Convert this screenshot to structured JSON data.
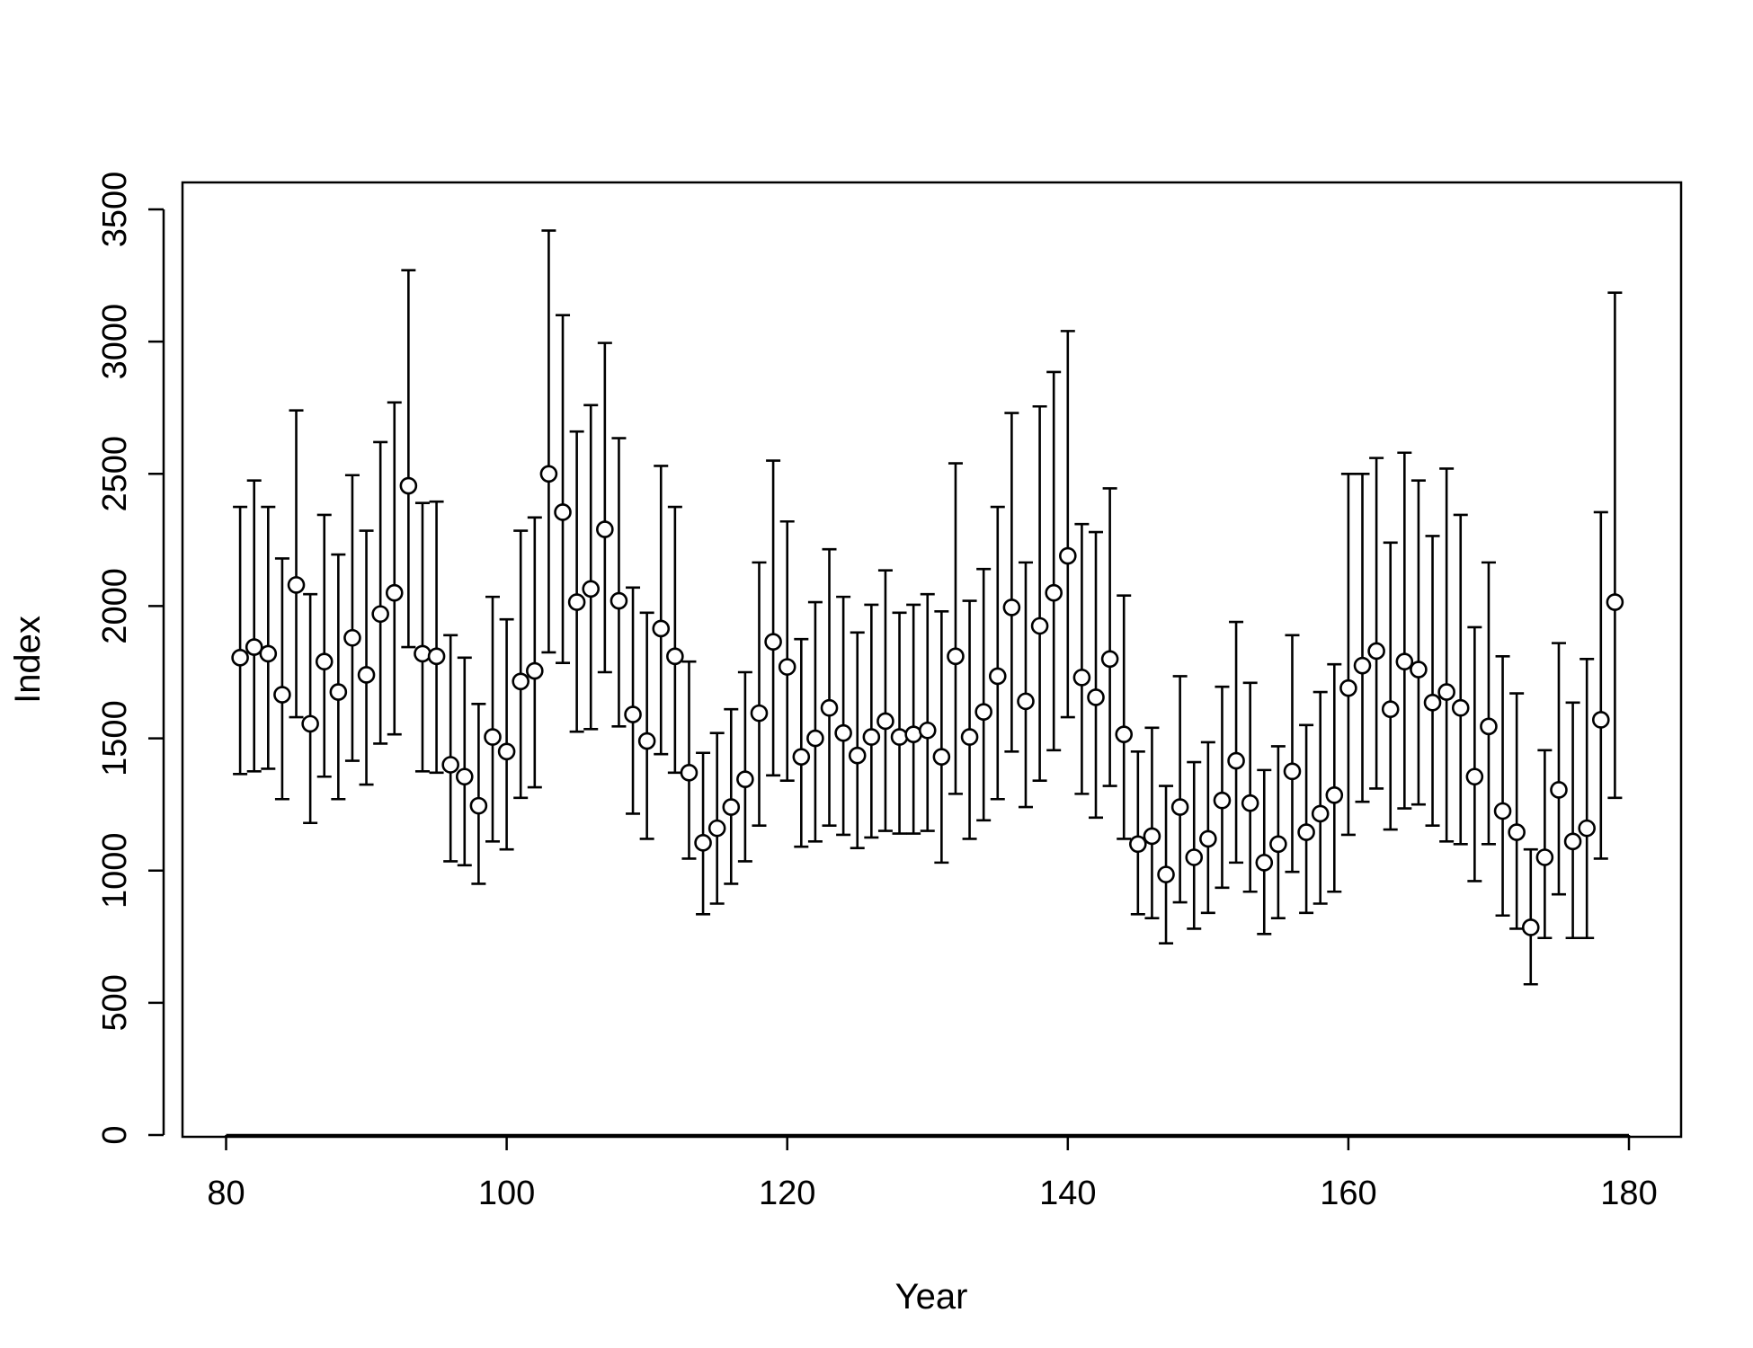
{
  "chart_data": {
    "type": "scatter",
    "title": "",
    "xlabel": "Year",
    "ylabel": "Index",
    "xlim": [
      81,
      179
    ],
    "ylim": [
      0,
      3500
    ],
    "xticks": [
      "80",
      "100",
      "120",
      "140",
      "160",
      "180"
    ],
    "yticks": [
      "0",
      "500",
      "1000",
      "1500",
      "2000",
      "2500",
      "3000",
      "3500"
    ],
    "grid": false,
    "legend": "none",
    "marker": "open-circle",
    "error_bars": true,
    "x": [
      81,
      82,
      83,
      84,
      85,
      86,
      87,
      88,
      89,
      90,
      91,
      92,
      93,
      94,
      95,
      96,
      97,
      98,
      99,
      100,
      101,
      102,
      103,
      104,
      105,
      106,
      107,
      108,
      109,
      110,
      111,
      112,
      113,
      114,
      115,
      116,
      117,
      118,
      119,
      120,
      121,
      122,
      123,
      124,
      125,
      126,
      127,
      128,
      129,
      130,
      131,
      132,
      133,
      134,
      135,
      136,
      137,
      138,
      139,
      140,
      141,
      142,
      143,
      144,
      145,
      146,
      147,
      148,
      149,
      150,
      151,
      152,
      153,
      154,
      155,
      156,
      157,
      158,
      159,
      160,
      161,
      162,
      163,
      164,
      165,
      166,
      167,
      168,
      169,
      170,
      171,
      172,
      173,
      174,
      175,
      176,
      177,
      178,
      179
    ],
    "y": [
      1805,
      1845,
      1820,
      1665,
      2080,
      1555,
      1790,
      1675,
      1880,
      1740,
      1970,
      2050,
      2455,
      1820,
      1810,
      1400,
      1355,
      1245,
      1505,
      1450,
      1715,
      1755,
      2500,
      2355,
      2015,
      2065,
      2290,
      2020,
      1590,
      1490,
      1915,
      1810,
      1370,
      1105,
      1160,
      1240,
      1345,
      1595,
      1865,
      1770,
      1430,
      1500,
      1615,
      1520,
      1435,
      1505,
      1565,
      1505,
      1515,
      1530,
      1430,
      1810,
      1505,
      1600,
      1735,
      1995,
      1640,
      1925,
      2050,
      2190,
      1730,
      1655,
      1800,
      1515,
      1100,
      1130,
      985,
      1240,
      1050,
      1120,
      1265,
      1415,
      1255,
      1030,
      1100,
      1375,
      1145,
      1215,
      1285,
      1690,
      1775,
      1830,
      1610,
      1790,
      1760,
      1635,
      1675,
      1615,
      1355,
      1545,
      1225,
      1145,
      785,
      1050,
      1305,
      1110,
      1160,
      1570,
      2015
    ],
    "lower": [
      1365,
      1375,
      1385,
      1270,
      1580,
      1180,
      1355,
      1270,
      1415,
      1325,
      1480,
      1515,
      1845,
      1375,
      1370,
      1035,
      1020,
      950,
      1110,
      1080,
      1275,
      1315,
      1825,
      1785,
      1525,
      1535,
      1750,
      1545,
      1215,
      1120,
      1440,
      1370,
      1045,
      835,
      875,
      950,
      1035,
      1170,
      1360,
      1340,
      1090,
      1110,
      1170,
      1135,
      1085,
      1125,
      1150,
      1140,
      1140,
      1150,
      1030,
      1290,
      1120,
      1190,
      1270,
      1450,
      1240,
      1340,
      1455,
      1580,
      1290,
      1200,
      1320,
      1120,
      835,
      820,
      725,
      880,
      780,
      840,
      935,
      1030,
      920,
      760,
      820,
      995,
      840,
      875,
      920,
      1135,
      1260,
      1310,
      1155,
      1235,
      1250,
      1170,
      1110,
      1100,
      960,
      1100,
      830,
      780,
      570,
      745,
      910,
      745,
      745,
      1045,
      1275
    ],
    "upper": [
      2375,
      2475,
      2375,
      2180,
      2740,
      2045,
      2345,
      2195,
      2495,
      2285,
      2620,
      2770,
      3270,
      2390,
      2395,
      1890,
      1805,
      1630,
      2035,
      1950,
      2285,
      2335,
      3420,
      3100,
      2660,
      2760,
      2995,
      2635,
      2070,
      1975,
      2530,
      2375,
      1790,
      1445,
      1520,
      1610,
      1750,
      2165,
      2550,
      2320,
      1875,
      2015,
      2215,
      2035,
      1900,
      2005,
      2135,
      1975,
      2005,
      2045,
      1980,
      2540,
      2020,
      2140,
      2375,
      2730,
      2165,
      2755,
      2885,
      3040,
      2310,
      2280,
      2445,
      2040,
      1450,
      1540,
      1320,
      1735,
      1410,
      1485,
      1695,
      1940,
      1710,
      1380,
      1470,
      1890,
      1550,
      1675,
      1780,
      2500,
      2500,
      2560,
      2240,
      2580,
      2475,
      2265,
      2520,
      2345,
      1920,
      2165,
      1810,
      1670,
      1080,
      1455,
      1860,
      1635,
      1800,
      2355,
      3185
    ]
  }
}
